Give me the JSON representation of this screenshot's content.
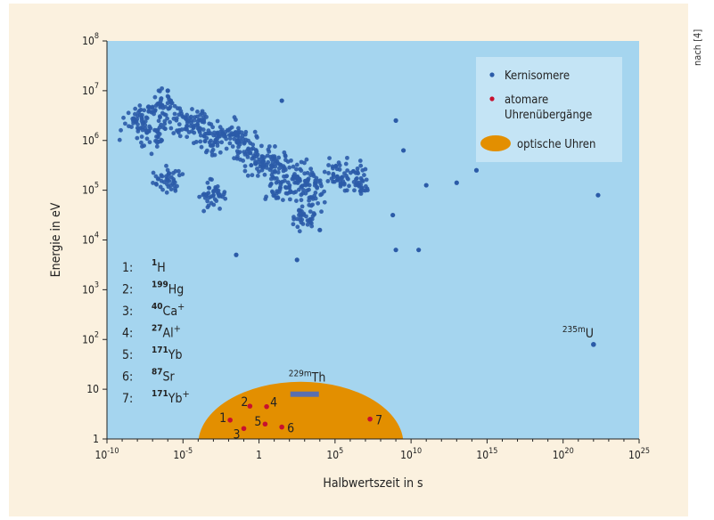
{
  "source_note": "nach [4]",
  "chart_data": {
    "type": "scatter",
    "x_scale": "log",
    "y_scale": "log",
    "xlabel": "Halbwertszeit  in s",
    "ylabel": "Energie in eV",
    "xlim_log10": [
      -10,
      25
    ],
    "ylim_log10": [
      0,
      8
    ],
    "x_ticks": [
      {
        "text": "10",
        "exp": "-10",
        "log10": -10
      },
      {
        "text": "10",
        "exp": "-5",
        "log10": -5
      },
      {
        "text": "1",
        "exp": "",
        "log10": 0
      },
      {
        "text": "10",
        "exp": "5",
        "log10": 5
      },
      {
        "text": "10",
        "exp": "10",
        "log10": 10
      },
      {
        "text": "10",
        "exp": "15",
        "log10": 15
      },
      {
        "text": "10",
        "exp": "20",
        "log10": 20
      },
      {
        "text": "10",
        "exp": "25",
        "log10": 25
      }
    ],
    "y_ticks": [
      {
        "text": "1",
        "exp": "",
        "log10": 0
      },
      {
        "text": "10",
        "exp": "",
        "log10": 1
      },
      {
        "text": "10",
        "exp": "2",
        "log10": 2
      },
      {
        "text": "10",
        "exp": "3",
        "log10": 3
      },
      {
        "text": "10",
        "exp": "4",
        "log10": 4
      },
      {
        "text": "10",
        "exp": "5",
        "log10": 5
      },
      {
        "text": "10",
        "exp": "6",
        "log10": 6
      },
      {
        "text": "10",
        "exp": "7",
        "log10": 7
      },
      {
        "text": "10",
        "exp": "8",
        "log10": 8
      }
    ],
    "legend": {
      "position": "top-right",
      "entries": [
        {
          "label": "Kernisomere",
          "marker": "dot",
          "color": "#2b5ba8"
        },
        {
          "label": "atomare",
          "label2": "Uhrenübergänge",
          "marker": "dot",
          "color": "#c8102e"
        },
        {
          "label": "optische Uhren",
          "marker": "ellipse",
          "color": "#e38f00"
        }
      ]
    },
    "colors": {
      "plot_bg": "#a5d5ef",
      "panel_bg": "#fbf1df",
      "isomer": "#2b5ba8",
      "clock": "#c8102e",
      "optical": "#e38f00",
      "thorium_bar": "#5a6fb0",
      "legend_bg": "#c9e6f6"
    },
    "series": [
      {
        "name": "Kernisomere",
        "cluster_points": [
          {
            "x_log10": -8,
            "y_log10": 6.4
          },
          {
            "x_log10": -7,
            "y_log10": 6.1
          },
          {
            "x_log10": -6.5,
            "y_log10": 6.7
          },
          {
            "x_log10": -5,
            "y_log10": 6.4
          },
          {
            "x_log10": -4,
            "y_log10": 6.3
          },
          {
            "x_log10": -3,
            "y_log10": 6.0
          },
          {
            "x_log10": -2,
            "y_log10": 6.1
          },
          {
            "x_log10": -1,
            "y_log10": 5.9
          },
          {
            "x_log10": 0,
            "y_log10": 5.6
          },
          {
            "x_log10": 1,
            "y_log10": 5.5
          },
          {
            "x_log10": 1.5,
            "y_log10": 5.0
          },
          {
            "x_log10": 2.5,
            "y_log10": 5.3
          },
          {
            "x_log10": 3.5,
            "y_log10": 5.1
          },
          {
            "x_log10": 5,
            "y_log10": 5.3
          },
          {
            "x_log10": 6.5,
            "y_log10": 5.2
          },
          {
            "x_log10": -6,
            "y_log10": 5.2
          },
          {
            "x_log10": -3,
            "y_log10": 4.9
          },
          {
            "x_log10": 3,
            "y_log10": 4.5
          }
        ],
        "outliers": [
          {
            "x_log10": 9,
            "y_log10": 6.4
          },
          {
            "x_log10": 9.5,
            "y_log10": 5.8
          },
          {
            "x_log10": 11,
            "y_log10": 5.1
          },
          {
            "x_log10": 13,
            "y_log10": 5.15
          },
          {
            "x_log10": 14.3,
            "y_log10": 5.4
          },
          {
            "x_log10": 22.3,
            "y_log10": 4.9
          },
          {
            "x_log10": 8.8,
            "y_log10": 4.5
          },
          {
            "x_log10": 9,
            "y_log10": 3.8
          },
          {
            "x_log10": 10.5,
            "y_log10": 3.8
          },
          {
            "x_log10": 2.5,
            "y_log10": 3.6
          },
          {
            "x_log10": -1.5,
            "y_log10": 3.7
          },
          {
            "x_log10": 1.5,
            "y_log10": 6.8
          },
          {
            "x_log10": -6,
            "y_log10": 7.0
          },
          {
            "x_log10": 4,
            "y_log10": 4.2
          }
        ]
      },
      {
        "name": "atomare Uhrenübergänge",
        "points": [
          {
            "label": "1",
            "x_log10": -1.9,
            "y_log10": 0.38
          },
          {
            "label": "2",
            "x_log10": -0.6,
            "y_log10": 0.66
          },
          {
            "label": "3",
            "x_log10": -1.0,
            "y_log10": 0.21
          },
          {
            "label": "4",
            "x_log10": 0.5,
            "y_log10": 0.65
          },
          {
            "label": "5",
            "x_log10": 0.4,
            "y_log10": 0.3
          },
          {
            "label": "6",
            "x_log10": 1.5,
            "y_log10": 0.24
          },
          {
            "label": "7",
            "x_log10": 7.3,
            "y_log10": 0.4
          }
        ]
      },
      {
        "name": "optische Uhren",
        "region": {
          "x_log10_range": [
            -4,
            9.5
          ],
          "y_log10_range": [
            0,
            1.15
          ]
        }
      }
    ],
    "annotations": [
      {
        "text_sup": "229m",
        "text": "Th",
        "x_log10": 3,
        "y_log10": 0.9
      },
      {
        "text_sup": "235m",
        "text": "U",
        "x_log10": 20.3,
        "y_log10": 1.9,
        "point": {
          "x_log10": 22,
          "y_log10": 1.9
        }
      }
    ],
    "key": [
      {
        "num": "1:",
        "sup": "1",
        "sym": "H"
      },
      {
        "num": "2:",
        "sup": "199",
        "sym": "Hg"
      },
      {
        "num": "3:",
        "sup": "40",
        "sym": "Ca+"
      },
      {
        "num": "4:",
        "sup": "27",
        "sym": "Al+"
      },
      {
        "num": "5:",
        "sup": "171",
        "sym": "Yb"
      },
      {
        "num": "6:",
        "sup": "87",
        "sym": "Sr"
      },
      {
        "num": "7:",
        "sup": "171",
        "sym": "Yb+"
      }
    ]
  }
}
